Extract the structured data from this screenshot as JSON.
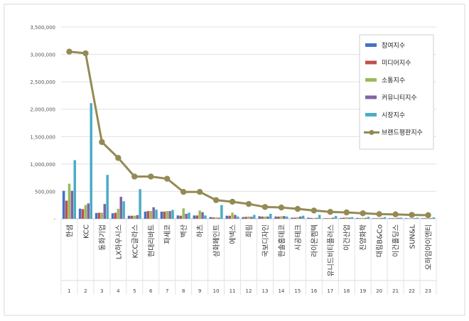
{
  "chart_data": {
    "type": "bar",
    "title": "",
    "xlabel": "",
    "ylabel": "",
    "ylim": [
      0,
      3500000
    ],
    "yticks": [
      "3,500,000",
      "3,000,000",
      "2,500,000",
      "2,000,000",
      "1,500,000",
      "1,000,000",
      "500,000",
      "-"
    ],
    "ytick_values": [
      3500000,
      3000000,
      2500000,
      2000000,
      1500000,
      1000000,
      500000,
      0
    ],
    "categories": [
      "한샘",
      "KCC",
      "동화기업",
      "LX하우시스",
      "KCC글라스",
      "현대리바트",
      "파세코",
      "벽산",
      "하츠",
      "삼화페인트",
      "에넥스",
      "희림",
      "국보디자인",
      "한솔홈데코",
      "시공테크",
      "라이온켐텍",
      "유니드비티플러스",
      "이건산업",
      "진양화학",
      "대림B&Co",
      "이건홀딩스",
      "SUN&L",
      "오하임아이엔티"
    ],
    "indices": [
      "1",
      "2",
      "3",
      "4",
      "5",
      "6",
      "7",
      "8",
      "9",
      "10",
      "11",
      "12",
      "13",
      "14",
      "15",
      "16",
      "17",
      "18",
      "19",
      "20",
      "21",
      "22",
      "23"
    ],
    "grid": true,
    "legend_position": "top-right",
    "series": [
      {
        "name": "참여지수",
        "kind": "bar",
        "color": "#4472c4",
        "values": [
          510000,
          185000,
          105000,
          100000,
          55000,
          130000,
          130000,
          60000,
          60000,
          30000,
          55000,
          30000,
          45000,
          40000,
          20000,
          20000,
          10000,
          15000,
          15000,
          10000,
          10000,
          10000,
          10000
        ]
      },
      {
        "name": "미디어지수",
        "kind": "bar",
        "color": "#c0504d",
        "values": [
          330000,
          175000,
          110000,
          110000,
          55000,
          140000,
          130000,
          55000,
          60000,
          25000,
          55000,
          35000,
          40000,
          40000,
          20000,
          15000,
          10000,
          20000,
          10000,
          10000,
          10000,
          5000,
          10000
        ]
      },
      {
        "name": "소통지수",
        "kind": "bar",
        "color": "#9bbb59",
        "values": [
          640000,
          250000,
          110000,
          180000,
          55000,
          140000,
          140000,
          190000,
          150000,
          25000,
          110000,
          40000,
          40000,
          45000,
          30000,
          15000,
          15000,
          25000,
          15000,
          15000,
          15000,
          10000,
          10000
        ]
      },
      {
        "name": "커뮤니티지수",
        "kind": "bar",
        "color": "#8064a2",
        "values": [
          510000,
          280000,
          270000,
          400000,
          65000,
          210000,
          140000,
          90000,
          120000,
          20000,
          70000,
          35000,
          40000,
          50000,
          40000,
          15000,
          20000,
          20000,
          15000,
          15000,
          15000,
          10000,
          10000
        ]
      },
      {
        "name": "시장지수",
        "kind": "bar",
        "color": "#4bacc6",
        "values": [
          1070000,
          2110000,
          800000,
          320000,
          540000,
          165000,
          160000,
          110000,
          60000,
          250000,
          40000,
          70000,
          90000,
          40000,
          55000,
          70000,
          50000,
          30000,
          35000,
          30000,
          20000,
          20000,
          25000
        ]
      },
      {
        "name": "브랜드평판지수",
        "kind": "line",
        "color": "#948a54",
        "values": [
          3050000,
          3020000,
          1400000,
          1110000,
          770000,
          770000,
          730000,
          490000,
          490000,
          340000,
          310000,
          270000,
          215000,
          205000,
          180000,
          150000,
          125000,
          115000,
          100000,
          85000,
          80000,
          70000,
          65000
        ]
      }
    ]
  }
}
